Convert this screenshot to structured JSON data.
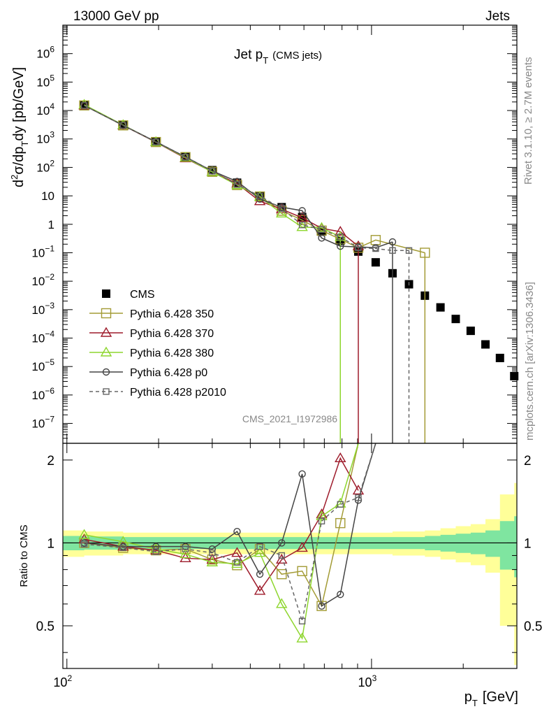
{
  "header": {
    "left": "13000 GeV pp",
    "right": "Jets"
  },
  "side": {
    "rivet": "Rivet 3.1.10, ≥ 2.7M events",
    "mcplots": "mcplots.cern.ch [arXiv:1306.3436]"
  },
  "watermark": "CMS_2021_I1972986",
  "chart_data": [
    {
      "type": "scatter",
      "panel": "main",
      "title_main": "Jet p",
      "title_sub": "T",
      "title_note": "(CMS jets)",
      "ylabel": "d²σ/dp_T dy [pb/GeV]",
      "ylabel_parts": {
        "a": "d",
        "b": "2",
        "c": "σ/dp",
        "d": "T",
        "e": "dy [pb/GeV]"
      },
      "xscale": "log",
      "yscale": "log",
      "xlim": [
        97,
        3000
      ],
      "ylim": [
        2e-08,
        10000000.0
      ],
      "ytick_exponents": [
        -7,
        -6,
        -5,
        -4,
        -3,
        -2,
        -1,
        0,
        1,
        2,
        3,
        4,
        5,
        6
      ],
      "ytick_labels": {
        "0": "1",
        "1": "10",
        "2": "10²"
      },
      "legend_position": "bottom-left",
      "series": [
        {
          "name": "CMS",
          "color": "#000000",
          "marker": "filled-square",
          "x": [
            114,
            153,
            196,
            245,
            300,
            362,
            430,
            507,
            592,
            686,
            790,
            905,
            1032,
            1172,
            1327,
            1497,
            1684,
            1890,
            2116,
            2366,
            2640,
            2941
          ],
          "y": [
            15000,
            3100,
            820,
            240,
            80,
            29,
            10,
            4.0,
            1.8,
            0.55,
            0.26,
            0.11,
            0.046,
            0.019,
            0.0078,
            0.0031,
            0.0012,
            0.00047,
            0.00018,
            6e-05,
            2e-05,
            4.6e-06
          ]
        },
        {
          "name": "Pythia 6.428 350",
          "color": "#a39b35",
          "marker": "open-square",
          "x": [
            114,
            153,
            196,
            245,
            300,
            362,
            430,
            507,
            592,
            686,
            790,
            905,
            1032,
            1497
          ],
          "y": [
            15100,
            3000,
            780,
            230,
            70,
            24,
            9.5,
            3.0,
            1.4,
            0.6,
            0.3,
            0.15,
            0.28,
            0.1
          ]
        },
        {
          "name": "Pythia 6.428 370",
          "color": "#9e1c2c",
          "marker": "open-triangle",
          "x": [
            114,
            153,
            196,
            245,
            300,
            362,
            430,
            507,
            592,
            686,
            790,
            905
          ],
          "y": [
            15200,
            3000,
            770,
            210,
            70,
            27,
            6.5,
            3.4,
            1.7,
            0.72,
            0.55,
            0.17
          ]
        },
        {
          "name": "Pythia 6.428 380",
          "color": "#8ed62e",
          "marker": "open-triangle",
          "x": [
            114,
            153,
            196,
            245,
            300,
            362,
            430,
            507,
            592,
            686,
            790
          ],
          "y": [
            16000,
            3100,
            780,
            220,
            69,
            24,
            9.2,
            2.4,
            0.8,
            0.75,
            0.36
          ]
        },
        {
          "name": "Pythia 6.428 p0",
          "color": "#444444",
          "marker": "open-circle",
          "x": [
            114,
            153,
            196,
            245,
            300,
            362,
            430,
            507,
            592,
            686,
            790,
            905,
            1032,
            1172
          ],
          "y": [
            15000,
            3000,
            800,
            235,
            75,
            32,
            7.7,
            4.0,
            3.0,
            0.33,
            0.17,
            0.16,
            0.15,
            0.24
          ]
        },
        {
          "name": "Pythia 6.428 p2010",
          "color": "#666666",
          "marker": "open-square-small",
          "dashed": true,
          "x": [
            114,
            153,
            196,
            245,
            300,
            362,
            430,
            507,
            592,
            686,
            790,
            905,
            1032,
            1172,
            1327
          ],
          "y": [
            15000,
            3000,
            780,
            230,
            74,
            25,
            9.8,
            3.6,
            0.95,
            0.66,
            0.36,
            0.15,
            0.14,
            0.12,
            0.12
          ]
        }
      ]
    },
    {
      "type": "line",
      "panel": "ratio",
      "ylabel": "Ratio to CMS",
      "xlabel_main": "p",
      "xlabel_sub": "T",
      "xlabel_unit": "[GeV]",
      "xtick_labels": [
        {
          "x": 100,
          "base": "10",
          "exp": "2"
        },
        {
          "x": 1000,
          "base": "10",
          "exp": "3"
        }
      ],
      "ytick_labels": [
        "0.5",
        "1",
        "2"
      ],
      "ylim": [
        0.35,
        2.3
      ],
      "band_inner": {
        "color": "#7fe5a0",
        "x": [
          97,
          114,
          153,
          196,
          245,
          300,
          362,
          430,
          507,
          592,
          686,
          790,
          905,
          1032,
          1172,
          1327,
          1497,
          1684,
          1890,
          2116,
          2366,
          2640,
          2941
        ],
        "hw": [
          0.06,
          0.055,
          0.05,
          0.05,
          0.05,
          0.05,
          0.05,
          0.05,
          0.05,
          0.05,
          0.05,
          0.05,
          0.05,
          0.05,
          0.05,
          0.05,
          0.06,
          0.07,
          0.08,
          0.09,
          0.11,
          0.2,
          0.25
        ]
      },
      "band_outer": {
        "color": "#ffff99",
        "x": [
          97,
          114,
          153,
          196,
          245,
          300,
          362,
          430,
          507,
          592,
          686,
          790,
          905,
          1032,
          1172,
          1327,
          1497,
          1684,
          1890,
          2116,
          2366,
          2640,
          2941
        ],
        "hw": [
          0.11,
          0.1,
          0.09,
          0.09,
          0.09,
          0.09,
          0.09,
          0.09,
          0.09,
          0.09,
          0.09,
          0.09,
          0.09,
          0.09,
          0.1,
          0.1,
          0.11,
          0.13,
          0.15,
          0.17,
          0.22,
          0.5,
          0.65
        ]
      },
      "series": [
        {
          "name": "Pythia 6.428 350",
          "color": "#a39b35",
          "marker": "open-square",
          "x": [
            114,
            153,
            196,
            245,
            300,
            362,
            430,
            507,
            592,
            686,
            790,
            905
          ],
          "y": [
            1.0,
            0.96,
            0.94,
            0.95,
            0.87,
            0.83,
            0.95,
            0.77,
            0.79,
            0.59,
            1.18,
            2.4
          ]
        },
        {
          "name": "Pythia 6.428 370",
          "color": "#9e1c2c",
          "marker": "open-triangle",
          "x": [
            114,
            153,
            196,
            245,
            300,
            362,
            430,
            507,
            592,
            686,
            790,
            905
          ],
          "y": [
            1.03,
            0.97,
            0.94,
            0.88,
            0.87,
            0.92,
            0.67,
            0.87,
            0.96,
            1.27,
            2.03,
            1.55
          ]
        },
        {
          "name": "Pythia 6.428 380",
          "color": "#8ed62e",
          "marker": "open-triangle",
          "x": [
            114,
            153,
            196,
            245,
            300,
            362,
            430,
            507,
            592,
            686,
            790,
            905
          ],
          "y": [
            1.07,
            1.01,
            0.95,
            0.91,
            0.85,
            0.84,
            0.92,
            0.6,
            0.45,
            1.25,
            1.39,
            2.4
          ]
        },
        {
          "name": "Pythia 6.428 p0",
          "color": "#444444",
          "marker": "open-circle",
          "x": [
            114,
            153,
            196,
            245,
            300,
            362,
            430,
            507,
            592,
            686,
            790,
            905,
            1032
          ],
          "y": [
            1.0,
            0.97,
            0.97,
            0.97,
            0.95,
            1.1,
            0.77,
            1.0,
            1.78,
            0.59,
            0.65,
            1.43,
            2.4
          ]
        },
        {
          "name": "Pythia 6.428 p2010",
          "color": "#666666",
          "marker": "open-square-small",
          "dashed": true,
          "x": [
            114,
            153,
            196,
            245,
            300,
            362,
            430,
            507,
            592,
            686,
            790,
            905,
            1032
          ],
          "y": [
            0.99,
            0.96,
            0.93,
            0.95,
            0.92,
            0.85,
            0.97,
            0.9,
            0.52,
            1.2,
            1.38,
            1.46,
            2.4
          ]
        }
      ]
    }
  ]
}
